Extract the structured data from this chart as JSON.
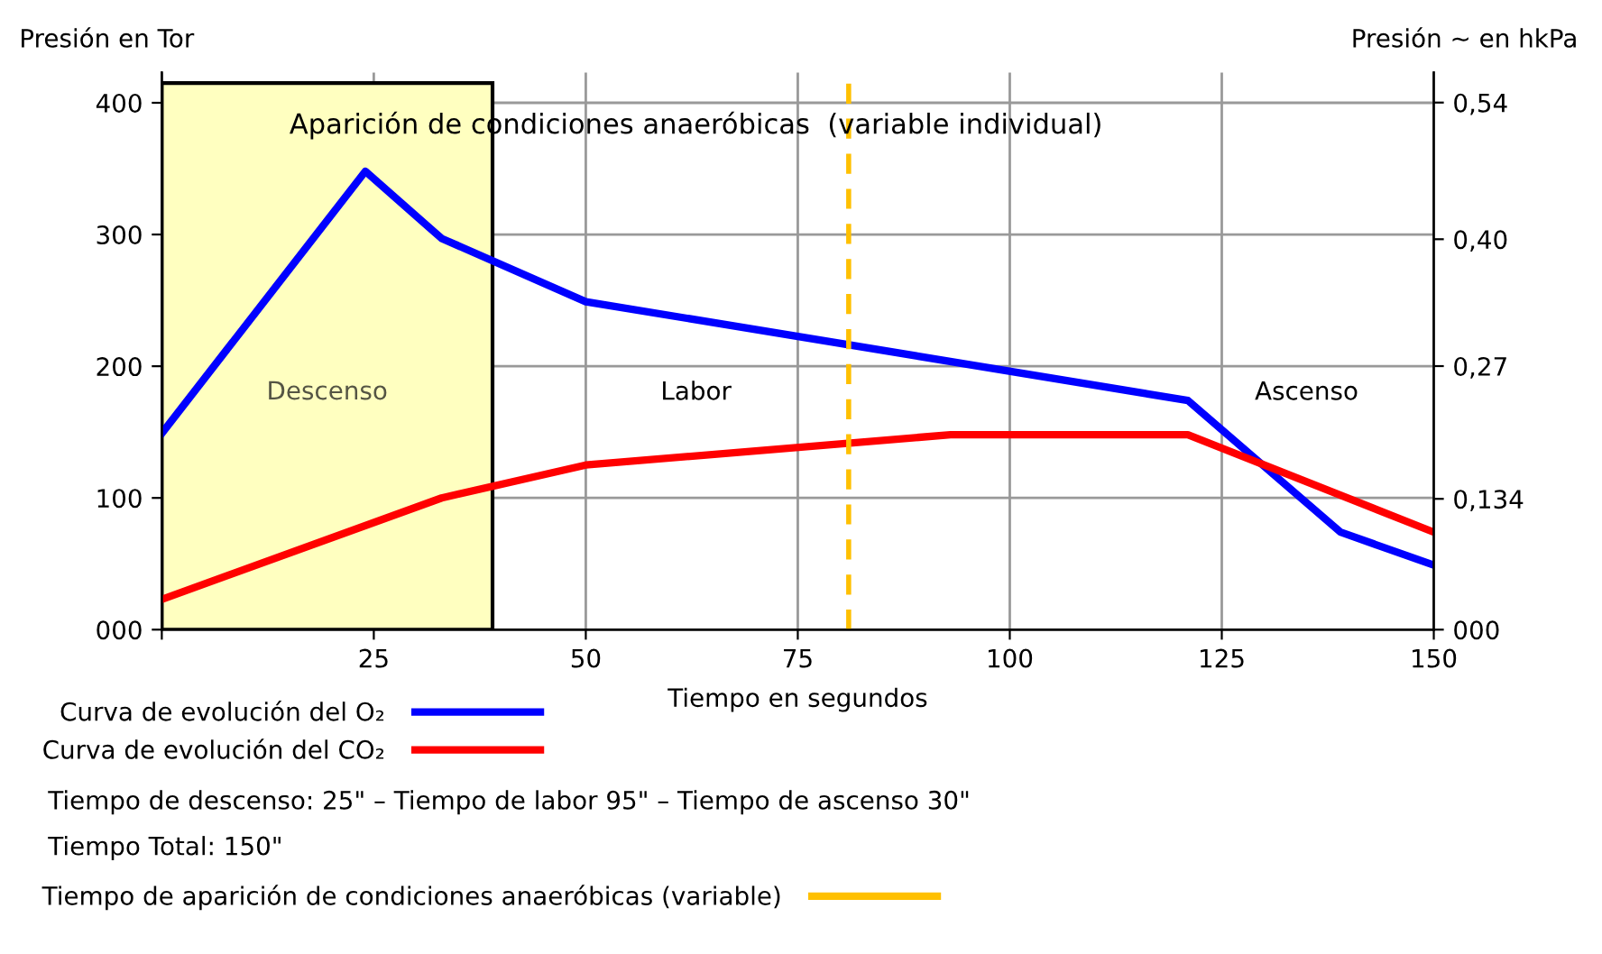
{
  "chart_data": {
    "type": "line",
    "xlabel": "Tiempo en segundos",
    "ylabel": "Presión en Tor",
    "y2label": "Presión ~ en hkPa",
    "xlim": [
      0,
      150
    ],
    "xticks": [
      {
        "value": 0,
        "label": null
      },
      25,
      50,
      75,
      100,
      125,
      150
    ],
    "ylim": [
      0,
      423
    ],
    "yticks": [
      {
        "value": 0,
        "label": "000"
      },
      100,
      200,
      300,
      400
    ],
    "y2lim": [
      0,
      0.5708
    ],
    "y2ticks": [
      {
        "value": 0,
        "label": "000"
      },
      {
        "value": 0.134,
        "label": "0,134"
      },
      {
        "value": 0.27,
        "label": "0,27"
      },
      {
        "value": 0.4,
        "label": "0,40"
      },
      {
        "value": 0.54,
        "label": "0,54"
      }
    ],
    "grid": true,
    "legend": "bottom",
    "line_style": "solid",
    "marker": "none",
    "series": [
      {
        "name": "Curva de evolución del O₂",
        "color": "#0000ff",
        "x": [
          0,
          24,
          33,
          50,
          121,
          139,
          150
        ],
        "values": [
          149,
          348,
          297,
          249,
          174,
          74,
          49
        ]
      },
      {
        "name": "Curva de evolución del CO₂",
        "color": "#ff0000",
        "x": [
          0,
          33,
          50,
          93,
          121,
          150
        ],
        "values": [
          23,
          100,
          125,
          148,
          148,
          74
        ]
      }
    ],
    "bands": [
      {
        "axis": "x",
        "from": 0,
        "to": 39,
        "label": "Descenso",
        "color": "#ffffc0"
      }
    ],
    "ref_lines": [
      {
        "axis": "x",
        "value": 81,
        "label": "Tiempo de aparición de condiciones anaeróbicas (variable)",
        "color": "#ffc000",
        "line_style": "dashed"
      }
    ],
    "annotations": [
      "Aparición de condiciones anaeróbicas  (variable individual)",
      "Labor",
      "Ascenso",
      "Tiempo de descenso: 25\" – Tiempo de labor 95\" – Tiempo de ascenso 30\"",
      "Tiempo Total: 150\""
    ]
  }
}
